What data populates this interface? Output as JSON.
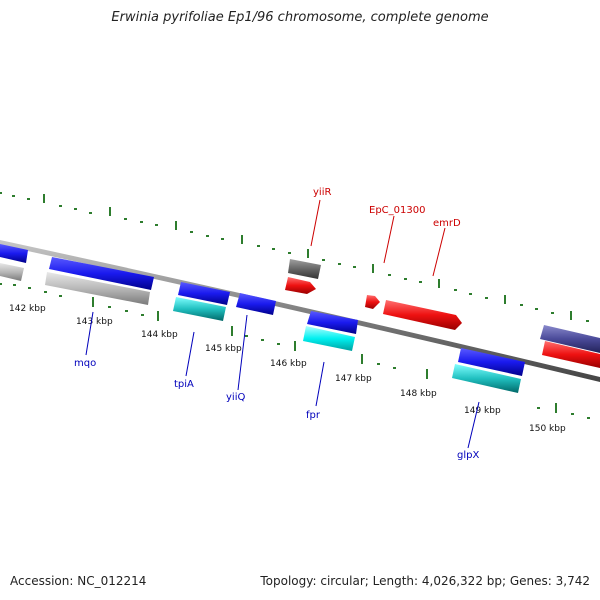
{
  "title": "Erwinia pyrifoliae Ep1/96 chromosome, complete genome",
  "footer": {
    "accession": "Accession: NC_012214",
    "topology": "Topology: circular; Length: 4,026,322 bp; Genes: 3,742"
  },
  "colors": {
    "backbone": "#808080",
    "tick": "#2e7d2e",
    "forward_label": "#cc0000",
    "reverse_label": "#0000bb",
    "gene_blue": "#1a1aee",
    "gene_cyan": "#20c0c0",
    "gene_gray": "#b8b8b8",
    "gene_dark_gray": "#666666",
    "gene_red": "#ee1111",
    "gene_slate": "#4a4a99"
  },
  "kbp_labels": [
    "142 kbp",
    "143 kbp",
    "144 kbp",
    "145 kbp",
    "146 kbp",
    "147 kbp",
    "148 kbp",
    "149 kbp",
    "150 kbp"
  ],
  "gene_labels": [
    {
      "name": "yiiR",
      "strand": "forward"
    },
    {
      "name": "EpC_01300",
      "strand": "forward"
    },
    {
      "name": "emrD",
      "strand": "forward"
    },
    {
      "name": "mqo",
      "strand": "reverse"
    },
    {
      "name": "tpiA",
      "strand": "reverse"
    },
    {
      "name": "yiiQ",
      "strand": "reverse"
    },
    {
      "name": "fpr",
      "strand": "reverse"
    },
    {
      "name": "glpX",
      "strand": "reverse"
    }
  ]
}
